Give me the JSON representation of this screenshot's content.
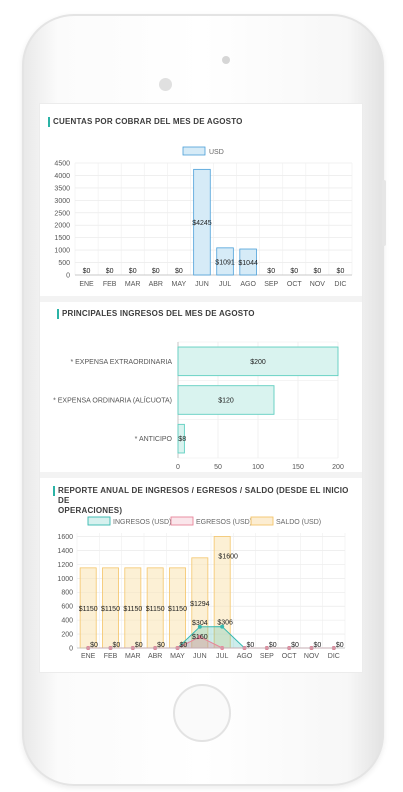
{
  "section1": {
    "title": "CUENTAS POR COBRAR DEL MES DE AGOSTO",
    "chart_data": {
      "type": "bar",
      "series": [
        {
          "name": "USD",
          "values": [
            0,
            0,
            0,
            0,
            0,
            4245,
            1091,
            1044,
            0,
            0,
            0,
            0
          ]
        }
      ],
      "categories": [
        "ENE",
        "FEB",
        "MAR",
        "ABR",
        "MAY",
        "JUN",
        "JUL",
        "AGO",
        "SEP",
        "OCT",
        "NOV",
        "DIC"
      ],
      "data_labels": [
        "$0",
        "$0",
        "$0",
        "$0",
        "$0",
        "$4245",
        "$1091",
        "$1044",
        "$0",
        "$0",
        "$0",
        "$0"
      ],
      "yticks": [
        0,
        500,
        1000,
        1500,
        2000,
        2500,
        3000,
        3500,
        4000,
        4500
      ],
      "ylim": [
        0,
        4500
      ],
      "legend_position": "top",
      "fill": "#d6ebf7",
      "stroke": "#4a9fd8"
    }
  },
  "section2": {
    "title": "PRINCIPALES INGRESOS DEL MES DE AGOSTO",
    "chart_data": {
      "type": "bar",
      "orientation": "horizontal",
      "categories": [
        "* EXPENSA EXTRAORDINARIA",
        "* EXPENSA ORDINARIA (ALÍCUOTA)",
        "* ANTICIPO"
      ],
      "values": [
        200,
        120,
        8
      ],
      "data_labels": [
        "$200",
        "$120",
        "$8"
      ],
      "xticks": [
        0,
        50,
        100,
        150,
        200
      ],
      "xlim": [
        0,
        200
      ],
      "fill": "#d9f3ef",
      "stroke": "#5fcfc0"
    }
  },
  "section3": {
    "title_line1": "REPORTE ANUAL DE INGRESOS / EGRESOS / SALDO (DESDE EL INICIO DE",
    "title_line2": "OPERACIONES)",
    "chart_data": {
      "type": "bar",
      "categories": [
        "ENE",
        "FEB",
        "MAR",
        "ABR",
        "MAY",
        "JUN",
        "JUL",
        "AGO",
        "SEP",
        "OCT",
        "NOV",
        "DIC"
      ],
      "series": [
        {
          "name": "INGRESOS (USD)",
          "type": "area",
          "values": [
            0,
            0,
            0,
            0,
            0,
            304,
            306,
            0,
            0,
            0,
            0,
            0
          ],
          "labels": [
            "$0",
            "$0",
            "$0",
            "$0",
            "$0",
            "$304",
            "$306",
            "$0",
            "$0",
            "$0",
            "$0",
            "$0"
          ],
          "color": "#36b9b0"
        },
        {
          "name": "EGRESOS (USD)",
          "type": "area",
          "values": [
            0,
            0,
            0,
            0,
            0,
            160,
            0,
            0,
            0,
            0,
            0,
            0
          ],
          "labels": [
            "$0",
            "$0",
            "$0",
            "$0",
            "$0",
            "$160",
            "$0",
            "$0",
            "$0",
            "$0",
            "$0",
            "$0"
          ],
          "color": "#e8849a"
        },
        {
          "name": "SALDO (USD)",
          "type": "bar",
          "values": [
            1150,
            1150,
            1150,
            1150,
            1150,
            1294,
            1600,
            0,
            0,
            0,
            0,
            0
          ],
          "labels": [
            "$1150",
            "$1150",
            "$1150",
            "$1150",
            "$1150",
            "$1294",
            "$1600",
            "",
            "",
            "",
            "",
            ""
          ],
          "color": "#f4c56a"
        }
      ],
      "yticks": [
        0,
        200,
        400,
        600,
        800,
        1000,
        1200,
        1400,
        1600
      ],
      "ylim": [
        0,
        1650
      ],
      "legend_position": "top"
    }
  }
}
